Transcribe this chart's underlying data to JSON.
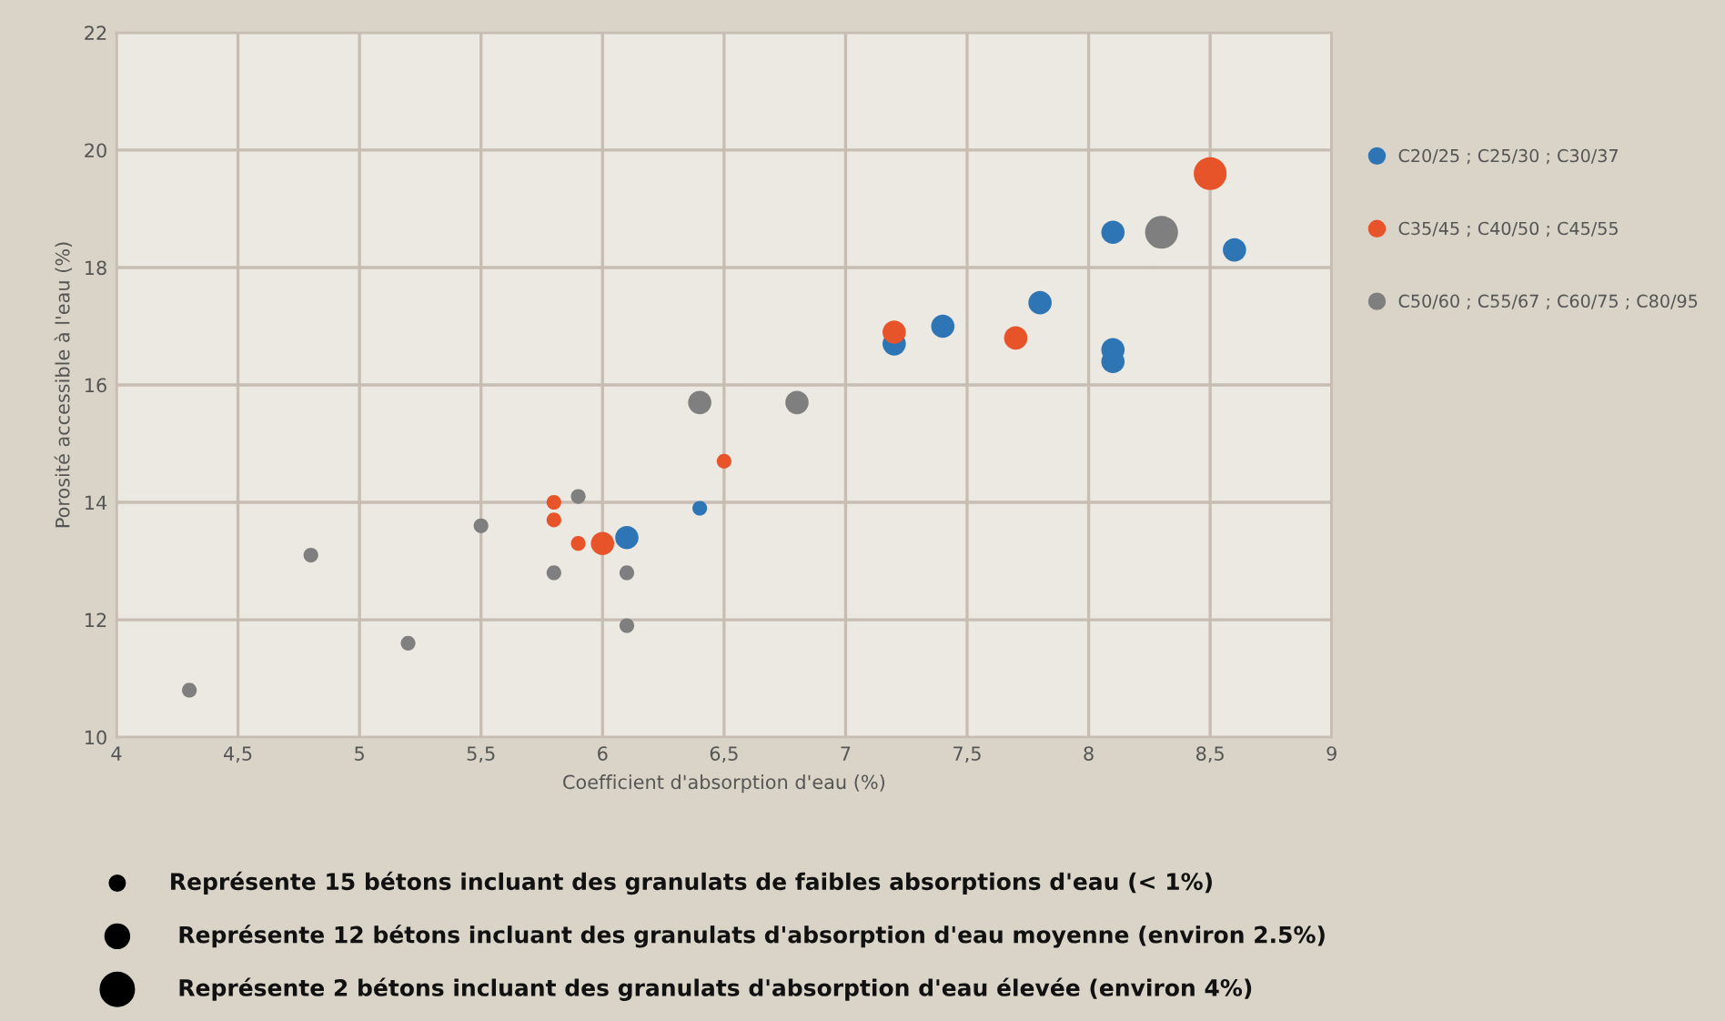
{
  "chart_data": {
    "type": "bubble",
    "xlabel": "Coefficient d'absorption d'eau (%)",
    "ylabel": "Porosité accessible à l'eau (%)",
    "xlim": [
      4,
      9
    ],
    "ylim": [
      10,
      22
    ],
    "xticks": [
      4,
      {
        "value": 4.5,
        "label": "4,5"
      },
      5,
      {
        "value": 5.5,
        "label": "5,5"
      },
      6,
      {
        "value": 6.5,
        "label": "6,5"
      },
      7,
      {
        "value": 7.5,
        "label": "7,5"
      },
      8,
      {
        "value": 8.5,
        "label": "8,5"
      },
      9
    ],
    "yticks": [
      10,
      12,
      14,
      16,
      18,
      20,
      22
    ],
    "grid": true,
    "legend": "right",
    "series": [
      {
        "name": "C20/25 ; C25/30 ; C30/37",
        "color": "#2e75b6",
        "x": [
          6.1,
          6.4,
          7.2,
          7.4,
          7.8,
          8.1,
          8.1,
          8.1,
          8.6
        ],
        "values": [
          13.4,
          13.9,
          16.7,
          17.0,
          17.4,
          16.6,
          16.4,
          18.6,
          18.3
        ],
        "sizes": [
          0.5,
          0.2,
          0.5,
          0.5,
          0.5,
          0.5,
          0.5,
          0.5,
          0.5
        ]
      },
      {
        "name": "C35/45 ; C40/50 ; C45/55",
        "color": "#e8542a",
        "x": [
          5.8,
          5.8,
          5.9,
          6.0,
          6.5,
          7.2,
          7.7,
          8.5
        ],
        "values": [
          14.0,
          13.7,
          13.3,
          13.3,
          14.7,
          16.9,
          16.8,
          19.6
        ],
        "sizes": [
          0.2,
          0.2,
          0.2,
          0.5,
          0.2,
          0.5,
          0.5,
          1
        ]
      },
      {
        "name": "C50/60 ; C55/67 ; C60/75 ; C80/95",
        "color": "#7f7f7f",
        "x": [
          4.3,
          4.8,
          5.2,
          5.5,
          5.8,
          5.9,
          6.1,
          6.1,
          6.4,
          6.8,
          8.3
        ],
        "values": [
          10.8,
          13.1,
          11.6,
          13.6,
          12.8,
          14.1,
          12.8,
          11.9,
          15.7,
          15.7,
          18.6
        ],
        "sizes": [
          0.2,
          0.2,
          0.2,
          0.2,
          0.2,
          0.2,
          0.2,
          0.2,
          0.5,
          0.5,
          1
        ]
      }
    ],
    "size_legend": [
      {
        "value": 0.2,
        "label": "Représente 15 bétons incluant des granulats de faibles absorptions d'eau (< 1%)"
      },
      {
        "value": 0.5,
        "label": "Représente 12 bétons incluant des granulats d'absorption d'eau moyenne (environ 2.5%)"
      },
      {
        "value": 1,
        "label": "Représente 2 bétons incluant des granulats d'absorption d'eau élevée (environ 4%)"
      }
    ]
  }
}
